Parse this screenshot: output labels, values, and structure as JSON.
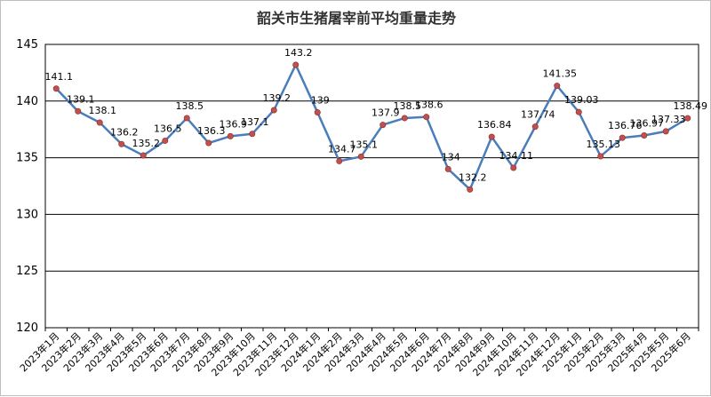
{
  "chart_data": {
    "type": "line",
    "title": "韶关市生猪屠宰前平均重量走势",
    "xlabel": "",
    "ylabel": "",
    "ylim": [
      120,
      145
    ],
    "yticks": [
      120,
      125,
      130,
      135,
      140,
      145
    ],
    "grid": true,
    "line_color": "#4a7ebb",
    "marker_color": "#c0504d",
    "categories": [
      "2023年1月",
      "2023年2月",
      "2023年3月",
      "2023年4月",
      "2023年5月",
      "2023年6月",
      "2023年7月",
      "2023年8月",
      "2023年9月",
      "2023年10月",
      "2023年11月",
      "2023年12月",
      "2024年1月",
      "2024年2月",
      "2024年3月",
      "2024年4月",
      "2024年5月",
      "2024年6月",
      "2024年7月",
      "2024年8月",
      "2024年9月",
      "2024年10月",
      "2024年11月",
      "2024年12月",
      "2025年1月",
      "2025年2月",
      "2025年3月",
      "2025年4月",
      "2025年5月",
      "2025年6月"
    ],
    "values": [
      141.1,
      139.1,
      138.1,
      136.2,
      135.2,
      136.5,
      138.5,
      136.3,
      136.9,
      137.1,
      139.2,
      143.2,
      139,
      134.7,
      135.1,
      137.9,
      138.5,
      138.6,
      134,
      132.2,
      136.84,
      134.11,
      137.74,
      141.35,
      139.03,
      135.13,
      136.76,
      136.97,
      137.33,
      138.49
    ],
    "labels": [
      "141.1",
      "139.1",
      "138.1",
      "136.2",
      "135.2",
      "136.5",
      "138.5",
      "136.3",
      "136.9",
      "137.1",
      "139.2",
      "143.2",
      "139",
      "134.7",
      "135.1",
      "137.9",
      "138.5",
      "138.6",
      "134",
      "132.2",
      "136.84",
      "134.11",
      "137.74",
      "141.35",
      "139.03",
      "135.13",
      "136.76",
      "136.97",
      "137.33",
      "138.49"
    ]
  }
}
